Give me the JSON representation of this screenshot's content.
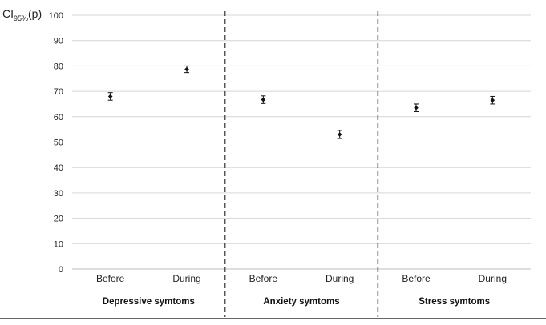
{
  "chart_data": {
    "type": "scatter",
    "ylabel": {
      "main": "CI",
      "sub": "95%",
      "suffix": "(p)"
    },
    "ylim": [
      0,
      100
    ],
    "yticks": [
      0,
      10,
      20,
      30,
      40,
      50,
      60,
      70,
      80,
      90,
      100
    ],
    "grid": true,
    "groups": [
      {
        "label": "Depressive symtoms",
        "categories": [
          "Before",
          "During"
        ]
      },
      {
        "label": "Anxiety symtoms",
        "categories": [
          "Before",
          "During"
        ]
      },
      {
        "label": "Stress symtoms",
        "categories": [
          "Before",
          "During"
        ]
      }
    ],
    "points": [
      {
        "group": 0,
        "category": "Before",
        "value": 68,
        "ci_low": 66.5,
        "ci_high": 69.5
      },
      {
        "group": 0,
        "category": "During",
        "value": 78.7,
        "ci_low": 77.4,
        "ci_high": 80
      },
      {
        "group": 1,
        "category": "Before",
        "value": 66.7,
        "ci_low": 65.2,
        "ci_high": 68.2
      },
      {
        "group": 1,
        "category": "During",
        "value": 53,
        "ci_low": 51.4,
        "ci_high": 54.6
      },
      {
        "group": 2,
        "category": "Before",
        "value": 63.5,
        "ci_low": 62,
        "ci_high": 65
      },
      {
        "group": 2,
        "category": "During",
        "value": 66.5,
        "ci_low": 65,
        "ci_high": 68
      }
    ]
  }
}
